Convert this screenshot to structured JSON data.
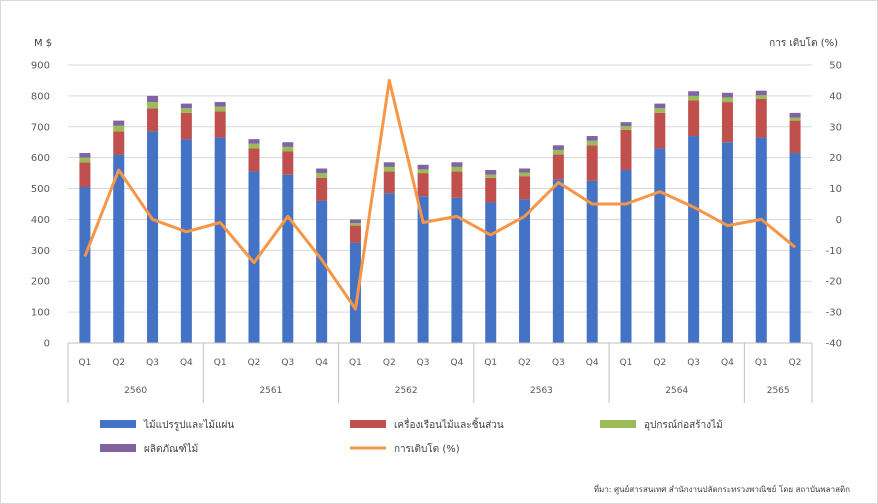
{
  "chart_data": {
    "type": "bar",
    "stacked": true,
    "title": "",
    "ylabel_left": "M $",
    "ylabel_right": "การ เติบโต (%)",
    "ylim_left": [
      0,
      900
    ],
    "yticks_left": [
      "0",
      "100",
      "200",
      "300",
      "400",
      "500",
      "600",
      "700",
      "800",
      "900"
    ],
    "ylim_right": [
      -40,
      50
    ],
    "yticks_right": [
      "-40",
      "-30",
      "-20",
      "-10",
      "0",
      "10",
      "20",
      "30",
      "40",
      "50"
    ],
    "categories": [
      "Q1",
      "Q2",
      "Q3",
      "Q4",
      "Q1",
      "Q2",
      "Q3",
      "Q4",
      "Q1",
      "Q2",
      "Q3",
      "Q4",
      "Q1",
      "Q2",
      "Q3",
      "Q4",
      "Q1",
      "Q2",
      "Q3",
      "Q4",
      "Q1",
      "Q2"
    ],
    "years": [
      {
        "label": "2560",
        "count": 4
      },
      {
        "label": "2561",
        "count": 4
      },
      {
        "label": "2562",
        "count": 4
      },
      {
        "label": "2563",
        "count": 4
      },
      {
        "label": "2564",
        "count": 4
      },
      {
        "label": "2565",
        "count": 2
      }
    ],
    "series": [
      {
        "name": "ไม้แปรรูปและไม้แผ่น",
        "color": "#4472C4",
        "kind": "bar",
        "values": [
          505,
          610,
          685,
          660,
          665,
          555,
          545,
          460,
          325,
          485,
          475,
          470,
          455,
          465,
          530,
          525,
          560,
          630,
          670,
          650,
          665,
          615
        ]
      },
      {
        "name": "เครื่องเรือนไม้และชิ้นส่วน",
        "color": "#C0504D",
        "kind": "bar",
        "values": [
          80,
          75,
          75,
          85,
          85,
          75,
          75,
          75,
          55,
          70,
          75,
          85,
          80,
          75,
          80,
          115,
          130,
          115,
          115,
          130,
          125,
          105
        ]
      },
      {
        "name": "อุปกรณ์ก่อสร้างไม้",
        "color": "#9BBB59",
        "kind": "bar",
        "values": [
          15,
          18,
          20,
          15,
          15,
          15,
          15,
          15,
          8,
          15,
          12,
          15,
          10,
          12,
          15,
          15,
          12,
          15,
          15,
          15,
          12,
          10
        ]
      },
      {
        "name": "ผลิตภัณฑ์ไม้",
        "color": "#8064A2",
        "kind": "bar",
        "values": [
          15,
          17,
          20,
          15,
          15,
          15,
          15,
          15,
          12,
          15,
          15,
          15,
          15,
          13,
          15,
          15,
          13,
          15,
          15,
          15,
          15,
          15
        ]
      },
      {
        "name": "การเติบโต (%)",
        "color": "#F79646",
        "kind": "line",
        "axis": "right",
        "values": [
          -12,
          16,
          0,
          -4,
          -1,
          -14,
          1,
          -13,
          -29,
          45,
          -1,
          1,
          -5,
          1,
          12,
          5,
          5,
          9,
          4,
          -2,
          0,
          -9
        ]
      }
    ]
  },
  "source_text": "ที่มา: ศูนย์สารสนเทศ สำนักงานปลัดกระทรวงพาณิชย์ โดย สถาบันพลาสติก"
}
